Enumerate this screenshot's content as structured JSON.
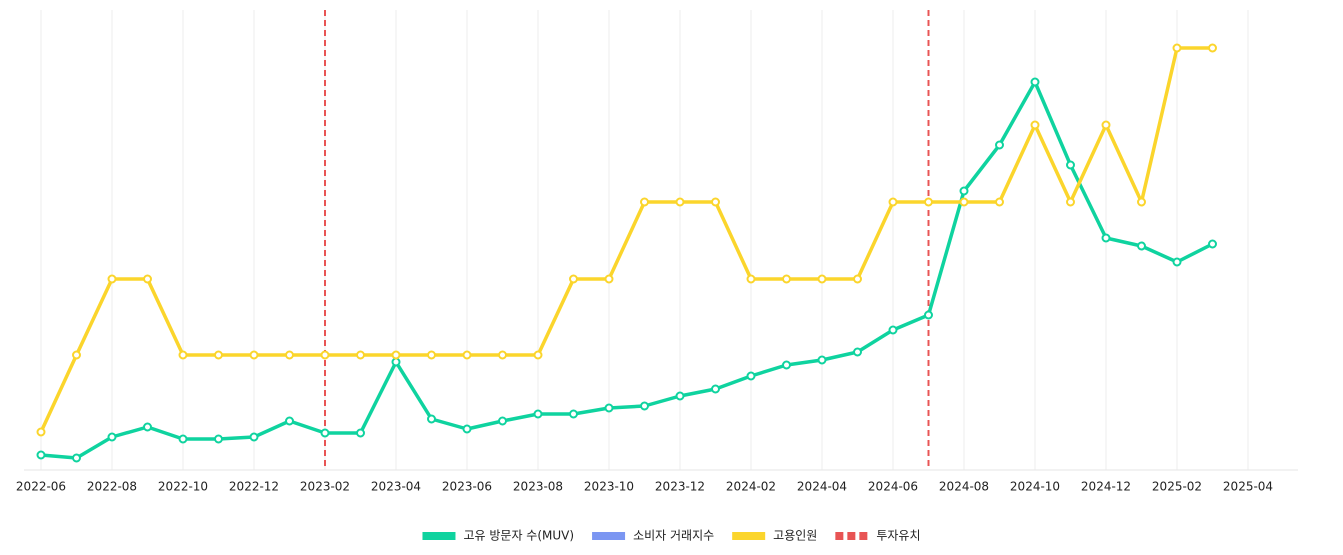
{
  "chart_data": {
    "type": "line",
    "categories": [
      "2022-06",
      null,
      "2022-08",
      null,
      "2022-10",
      null,
      "2022-12",
      null,
      "2023-02",
      null,
      "2023-04",
      null,
      "2023-06",
      null,
      "2023-08",
      null,
      "2023-10",
      null,
      "2023-12",
      null,
      "2024-02",
      null,
      "2024-04",
      null,
      "2024-06",
      null,
      "2024-08",
      null,
      "2024-10",
      null,
      "2024-12",
      null,
      "2025-02",
      null,
      "2025-04"
    ],
    "series": [
      {
        "name": "고유 방문자 수(MUV)",
        "color": "#0fd39f",
        "values": [
          15,
          12,
          33,
          43,
          31,
          31,
          33,
          49,
          37,
          37,
          108,
          51,
          41,
          49,
          56,
          56,
          62,
          64,
          74,
          81,
          94,
          105,
          110,
          118,
          140,
          155,
          279,
          325,
          388,
          305,
          232,
          224,
          208,
          226,
          null
        ]
      },
      {
        "name": "소비자 거래지수",
        "color": "#7b96f2",
        "values": [
          null,
          null,
          null,
          null,
          null,
          null,
          null,
          null,
          null,
          null,
          null,
          null,
          null,
          null,
          null,
          null,
          null,
          null,
          null,
          null,
          null,
          null,
          null,
          null,
          null,
          null,
          null,
          null,
          null,
          null,
          null,
          null,
          null,
          null,
          null
        ]
      },
      {
        "name": "고용인원",
        "color": "#fbd52c",
        "values": [
          38,
          115,
          191,
          191,
          115,
          115,
          115,
          115,
          115,
          115,
          115,
          115,
          115,
          115,
          115,
          191,
          191,
          268,
          268,
          268,
          191,
          191,
          191,
          191,
          268,
          268,
          268,
          268,
          345,
          268,
          345,
          268,
          422,
          422,
          null
        ]
      }
    ],
    "events": {
      "name": "투자유치",
      "color": "#e85454",
      "x": [
        "2023-02",
        "2024-07"
      ]
    },
    "ylim": [
      0,
      460
    ],
    "grid": true,
    "legend": "bottom"
  }
}
